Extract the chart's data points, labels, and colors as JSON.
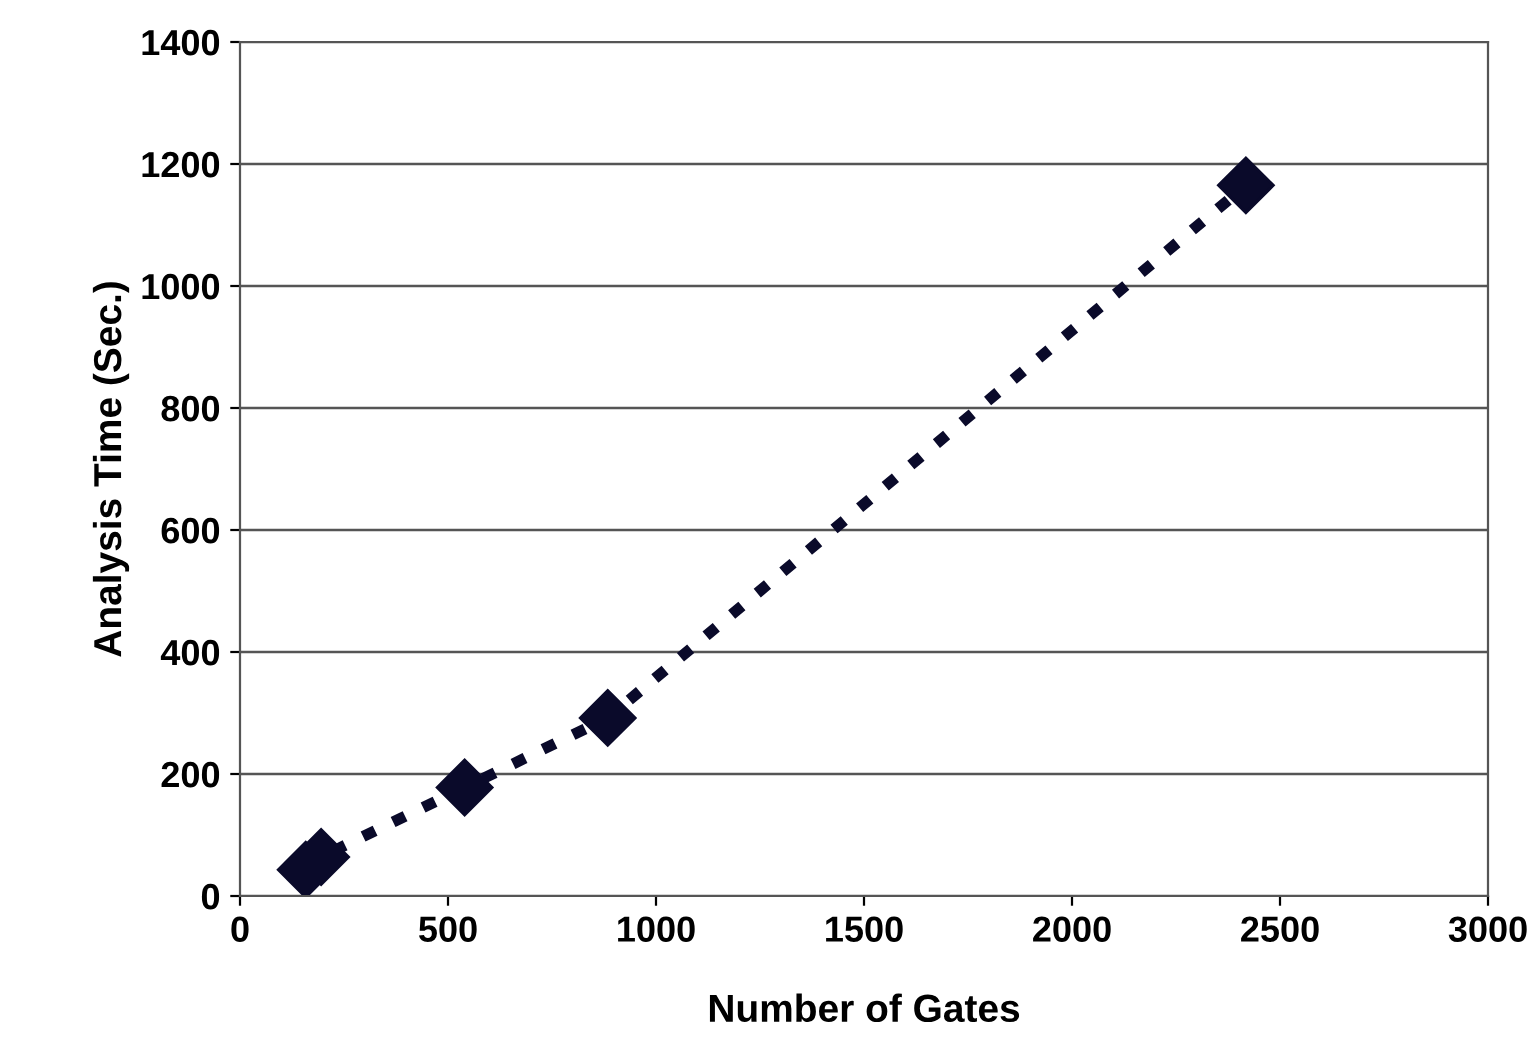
{
  "chart_data": {
    "type": "line",
    "xlabel": "Number of Gates",
    "ylabel": "Analysis Time (Sec.)",
    "x": [
      158,
      195,
      540,
      884,
      2418
    ],
    "series": [
      {
        "color": "#0a0a2a",
        "values": [
          43,
          64,
          178,
          292,
          1165
        ]
      }
    ],
    "xlim": [
      0,
      3000
    ],
    "xticks": [
      0,
      500,
      1000,
      1500,
      2000,
      2500,
      3000
    ],
    "ylim": [
      0,
      1400
    ],
    "yticks": [
      0,
      200,
      400,
      600,
      800,
      1000,
      1200,
      1400
    ],
    "grid": "y",
    "marker": "diamond",
    "line_style": "dotted"
  }
}
